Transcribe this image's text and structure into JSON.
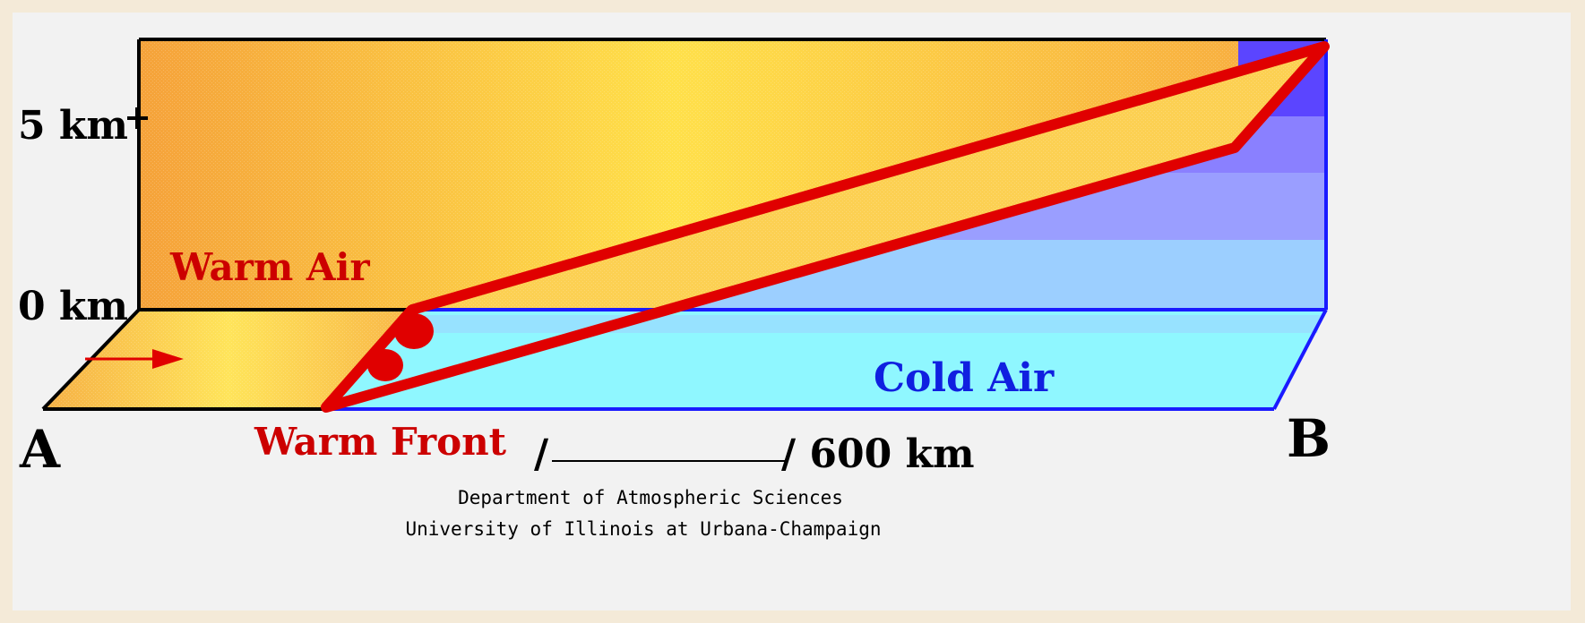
{
  "diagram": {
    "axis": {
      "top_label": "5 km",
      "bottom_label": "0 km"
    },
    "points": {
      "start": "A",
      "end": "B"
    },
    "air_masses": {
      "warm": "Warm Air",
      "cold": "Cold Air"
    },
    "front_label": "Warm Front",
    "scale": {
      "label": "/ 600 km"
    },
    "credit": {
      "line1": "Department of Atmospheric Sciences",
      "line2": "University of Illinois at Urbana-Champaign"
    },
    "colors": {
      "warm_light": "#ffe24a",
      "warm_dark": "#f6a63c",
      "front_red": "#e00000",
      "cold_cyan": "#8ff7ff",
      "cold_blue_light": "#9ccfff",
      "cold_blue_mid": "#8d9cff",
      "cold_blue_dark": "#5b45ff",
      "label_red": "#cc0000",
      "label_blue": "#1020e0"
    }
  }
}
